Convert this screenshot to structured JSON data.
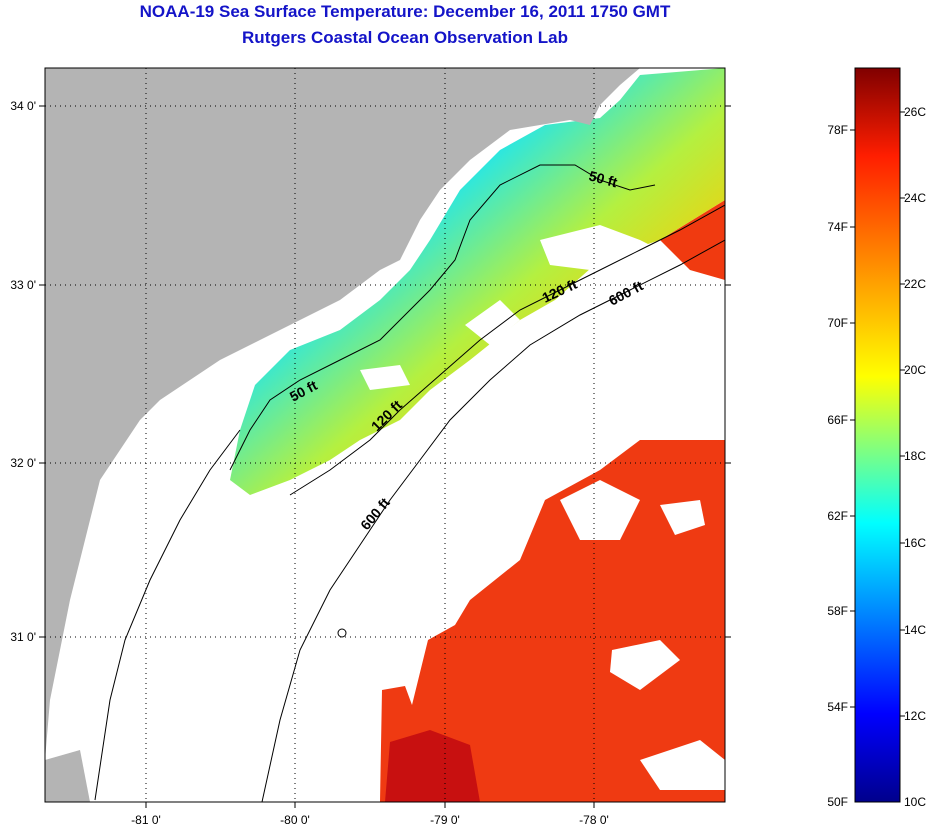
{
  "title": {
    "line1": "NOAA-19 Sea Surface Temperature:  December 16, 2011 1750 GMT",
    "line2": "Rutgers Coastal Ocean Observation Lab"
  },
  "map": {
    "lon_labels": [
      "-81 0'",
      "-80 0'",
      "-79 0'",
      "-78 0'"
    ],
    "lat_labels": [
      "34 0'",
      "33 0'",
      "32 0'",
      "31 0'"
    ],
    "isobath_labels": [
      "50 ft",
      "120 ft",
      "600 ft",
      "50 ft",
      "120 ft",
      "600 ft"
    ]
  },
  "colorbar": {
    "fahrenheit_labels": [
      "78F",
      "74F",
      "70F",
      "66F",
      "62F",
      "58F",
      "54F",
      "50F"
    ],
    "celsius_labels": [
      "26C",
      "24C",
      "22C",
      "20C",
      "18C",
      "16C",
      "14C",
      "12C",
      "10C"
    ],
    "colors": {
      "top": "#800000",
      "red": "#ff1e00",
      "orange": "#ff8000",
      "yellow": "#ffff00",
      "cyan": "#00ffff",
      "blue": "#0000ff",
      "bottom": "#00008c"
    }
  },
  "colors": {
    "land": "#b4b4b4",
    "title": "#1414c8",
    "cloud": "#ffffff"
  }
}
